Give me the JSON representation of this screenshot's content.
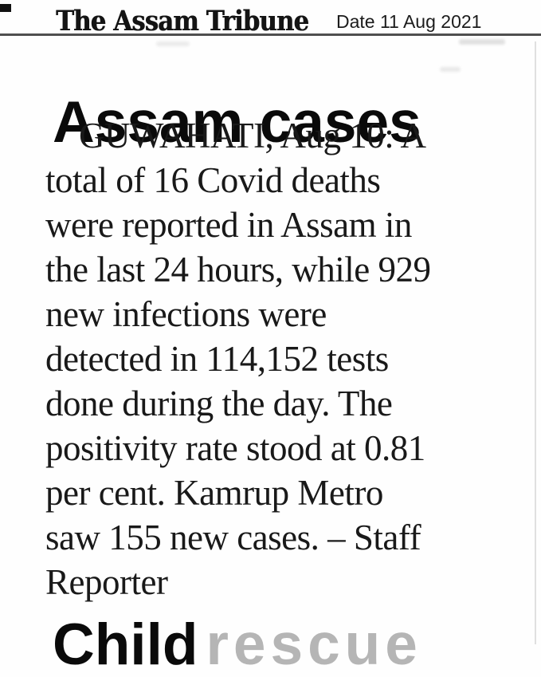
{
  "colors": {
    "ink": "#191919",
    "headline_ink": "#0a0a0a",
    "faded_headline_ink": "#b5b5b5",
    "header_rule": "#4f4f4f",
    "background": "#fefefe"
  },
  "header": {
    "masthead": "The Assam Tribune",
    "date_label": "Date 11 Aug 2021"
  },
  "article": {
    "headline": "Assam cases",
    "body_lines": [
      "GUWAHATI, Aug 10: A",
      "total of 16 Covid deaths",
      "were reported in Assam in",
      "the last 24 hours, while 929",
      "new infections were",
      "detected in 114,152 tests",
      "done during the day. The",
      "positivity rate stood at 0.81",
      "per cent. Kamrup Metro",
      "saw 155 new cases. – Staff",
      "Reporter"
    ]
  },
  "next_article": {
    "headline_word_black": "Child",
    "headline_word_faded": "rescue"
  }
}
